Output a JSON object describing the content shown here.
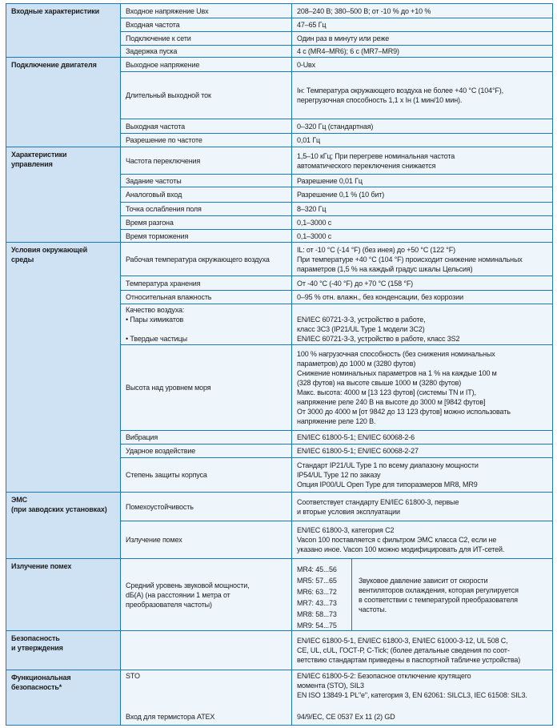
{
  "groups": [
    {
      "title": "Входные характеристики",
      "rows": [
        {
          "param": "Входное напряжение Uвх",
          "value": "208–240 В; 380–500 В; от -10 % до +10 %"
        },
        {
          "param": "Входная частота",
          "value": "47–65 Гц"
        },
        {
          "param": "Подключение к сети",
          "value": "Один раз в минуту или реже"
        },
        {
          "param": "Задержка пуска",
          "value": "4 с (MR4–MR6); 6 с (MR7–MR9)"
        }
      ]
    },
    {
      "title": "Подключение двигателя",
      "rows": [
        {
          "param": "Выходное напряжение",
          "value": "0-Uвх"
        },
        {
          "param": "Длительный выходной ток",
          "value": "Iн: Температура окружающего воздуха не более +40 °C (104°F),\nперегрузочная способность 1,1 x Iн (1 мин/10 мин)."
        },
        {
          "param": "Выходная частота",
          "value": "0–320 Гц (стандартная)"
        },
        {
          "param": "Разрешение по частоте",
          "value": "0,01 Гц"
        }
      ]
    },
    {
      "title": "Характеристики\nуправления",
      "rows": [
        {
          "param": "Частота переключения",
          "value": "1,5–10 кГц; При перегреве номинальная частота\nавтоматического переключения снижается"
        },
        {
          "param": "Задание частоты",
          "value": "Разрешение 0,01 Гц"
        },
        {
          "param": "Аналоговый вход",
          "value": "Разрешение 0,1 % (10 бит)"
        },
        {
          "param": "Точка ослабления поля",
          "value": "8–320 Гц"
        },
        {
          "param": "Время разгона",
          "value": "0,1–3000 с"
        },
        {
          "param": "Время торможения",
          "value": "0,1–3000 с"
        }
      ]
    },
    {
      "title": "Условия окружающей\nсреды",
      "rows": [
        {
          "param": "Рабочая температура окружающего воздуха",
          "value": "IL: от -10 °C (-14 °F) (без инея) до +50 °C (122 °F)\nПри температуре +40 °C (104 °F) происходит снижение номинальных\nпараметров (1,5 % на каждый градус шкалы Цельсия)"
        },
        {
          "param": "Температура хранения",
          "value": "От -40 °C (-40 °F) до +70 °C (158 °F)"
        },
        {
          "param": "Относительная влажность",
          "value": "0–95 % отн. влажн., без конденсации, без коррозии"
        },
        {
          "param": "Качество воздуха:\n• Пары химикатов\n\n• Твердые частицы",
          "value": "\nEN/IEC 60721-3-3, устройство в работе,\nкласс 3C3 (IP21/UL Type 1 модели 3C2)\nEN/IEC 60721-3-3, устройство в работе, класс 3S2"
        },
        {
          "param": "Высота над уровнем моря",
          "value": "100 % нагрузочная способность (без снижения номинальных\nпараметров) до 1000 м (3280 футов)\nСнижение номинальных параметров на 1 % на каждые 100 м\n(328 футов) на высоте свыше 1000 м (3280 футов)\nМакс. высота: 4000 м [13 123 футов] (системы TN и IT),\nнапряжение реле 240 В на высоте до 3000 м [9842 футов]\nОт 3000 до 4000 м [от 9842 до 13 123 футов] можно использовать\nнапряжение реле 120 В."
        },
        {
          "param": "Вибрация",
          "value": "EN/IEC 61800-5-1; EN/IEC 60068-2-6"
        },
        {
          "param": "Ударное воздействие",
          "value": "EN/IEC 61800-5-1; EN/IEC 60068-2-27"
        },
        {
          "param": "Степень защиты корпуса",
          "value": "Стандарт IP21/UL Type 1 по всему диапазону мощности\nIP54/UL Type 12 по заказу\nОпция IP00/UL Open Type для типоразмеров MR8, MR9"
        }
      ]
    },
    {
      "title": "ЭМС\n(при заводских установках)",
      "rows": [
        {
          "param": "Помехоустойчивость",
          "value": "Соответствует стандарту EN/IEC 61800-3, первые\nи вторые условия эксплуатации"
        },
        {
          "param": "Излучение помех",
          "value": "EN/IEC 61800-3, категория C2\nVacon 100 поставляется с фильтром ЭМС класса C2, если не\nуказано иное. Vacon 100 можно модифицировать для ИТ-сетей."
        }
      ]
    },
    {
      "title": "Излучение помех",
      "rows": [
        {
          "param": "Средний уровень звуковой мощности,\ndБ(А) (на расстоянии 1 метра от\nпреобразователя частоты)",
          "levels": [
            "MR4: 45...56",
            "MR5: 57...65",
            "MR6: 63...72",
            "MR7: 43...73",
            "MR8: 58...73",
            "MR9: 54...75"
          ],
          "note": "Звуковое давление зависит от скорости\nвентиляторов охлаждения, которая регулируется\nв соответствии с температурой преобразователя\nчастоты."
        }
      ]
    },
    {
      "title": "Безопасность\nи утверждения",
      "rows": [
        {
          "param": "",
          "value": "EN/IEC 61800-5-1, EN/IEC 61800-3, EN/IEC 61000-3-12, UL 508 C,\nCE, UL, cUL, ГОСТ-Р, C-Tick; (более детальные сведения по соот-\nветствию стандартам приведены в паспортной табличке устройства)"
        }
      ]
    },
    {
      "title": "Функциональная\nбезопасность*",
      "rows": [
        {
          "param": "STO",
          "param2": "Вход для термистора ATEX",
          "value": "EN/IEC 61800-5-2: Безопасное отключение крутящего\nмомента (STO), SIL3\nEN ISO 13849-1 PL\"e\", категория 3, EN 62061: SILCL3, IEC 61508: SIL3.",
          "value2": "94/9/EC, CE 0537 Ex 11 (2) GD"
        }
      ]
    }
  ],
  "colors": {
    "border": "#1d78b8",
    "group_bg": "#cfe2f3",
    "cell_bg": "#eef5fb"
  }
}
